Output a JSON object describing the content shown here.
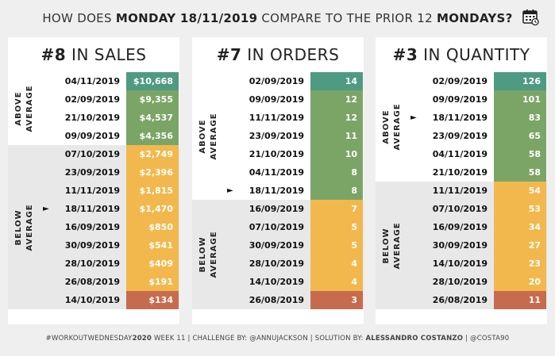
{
  "header": {
    "title_pre": "HOW DOES ",
    "title_day": "MONDAY 18/11/2019",
    "title_mid": " COMPARE TO THE PRIOR 12 ",
    "title_end": "MONDAYS?",
    "calendar_icon": "calendar-icon"
  },
  "footer": {
    "tag": "#WORKOUTWEDNESDAY",
    "tag2": "2020",
    "week": " WEEK 11 | CHALLENGE BY: ",
    "challenger": "@ANNUJACKSON",
    "sol": " | SOLUTION BY: ",
    "solver": "ALESSANDRO COSTANZO",
    "handle": " | @COSTA90"
  },
  "labels": {
    "above": [
      "ABOVE",
      "AVERAGE"
    ],
    "below": [
      "BELOW",
      "AVERAGE"
    ],
    "pointer": "►"
  },
  "colors": {
    "top": "#4f9a82",
    "above": "#7aa566",
    "below": "#f2b84d",
    "bottom": "#c76b4f",
    "panel": "#ffffff",
    "below_band": "#e8e8e8"
  },
  "chart_data": [
    {
      "type": "table",
      "rank": "#8",
      "metric": "IN SALES",
      "selected": "18/11/2019",
      "above_count": 4,
      "rows": [
        {
          "date": "04/11/2019",
          "value": 10668,
          "display": "$10,668"
        },
        {
          "date": "02/09/2019",
          "value": 9355,
          "display": "$9,355"
        },
        {
          "date": "21/10/2019",
          "value": 4537,
          "display": "$4,537"
        },
        {
          "date": "09/09/2019",
          "value": 4356,
          "display": "$4,356"
        },
        {
          "date": "07/10/2019",
          "value": 2749,
          "display": "$2,749"
        },
        {
          "date": "23/09/2019",
          "value": 2396,
          "display": "$2,396"
        },
        {
          "date": "11/11/2019",
          "value": 1815,
          "display": "$1,815"
        },
        {
          "date": "18/11/2019",
          "value": 1470,
          "display": "$1,470"
        },
        {
          "date": "16/09/2019",
          "value": 850,
          "display": "$850"
        },
        {
          "date": "30/09/2019",
          "value": 541,
          "display": "$541"
        },
        {
          "date": "28/10/2019",
          "value": 409,
          "display": "$409"
        },
        {
          "date": "26/08/2019",
          "value": 191,
          "display": "$191"
        },
        {
          "date": "14/10/2019",
          "value": 134,
          "display": "$134"
        }
      ]
    },
    {
      "type": "table",
      "rank": "#7",
      "metric": "IN ORDERS",
      "selected": "18/11/2019",
      "above_count": 7,
      "rows": [
        {
          "date": "02/09/2019",
          "value": 14,
          "display": "14"
        },
        {
          "date": "09/09/2019",
          "value": 12,
          "display": "12"
        },
        {
          "date": "11/11/2019",
          "value": 12,
          "display": "12"
        },
        {
          "date": "23/09/2019",
          "value": 11,
          "display": "11"
        },
        {
          "date": "21/10/2019",
          "value": 10,
          "display": "10"
        },
        {
          "date": "04/11/2019",
          "value": 8,
          "display": "8"
        },
        {
          "date": "18/11/2019",
          "value": 8,
          "display": "8"
        },
        {
          "date": "16/09/2019",
          "value": 7,
          "display": "7"
        },
        {
          "date": "07/10/2019",
          "value": 5,
          "display": "5"
        },
        {
          "date": "30/09/2019",
          "value": 5,
          "display": "5"
        },
        {
          "date": "28/10/2019",
          "value": 4,
          "display": "4"
        },
        {
          "date": "14/10/2019",
          "value": 4,
          "display": "4"
        },
        {
          "date": "26/08/2019",
          "value": 3,
          "display": "3"
        }
      ]
    },
    {
      "type": "table",
      "rank": "#3",
      "metric": "IN QUANTITY",
      "selected": "18/11/2019",
      "above_count": 6,
      "rows": [
        {
          "date": "02/09/2019",
          "value": 126,
          "display": "126"
        },
        {
          "date": "09/09/2019",
          "value": 101,
          "display": "101"
        },
        {
          "date": "18/11/2019",
          "value": 83,
          "display": "83"
        },
        {
          "date": "23/09/2019",
          "value": 65,
          "display": "65"
        },
        {
          "date": "04/11/2019",
          "value": 58,
          "display": "58"
        },
        {
          "date": "21/10/2019",
          "value": 58,
          "display": "58"
        },
        {
          "date": "11/11/2019",
          "value": 54,
          "display": "54"
        },
        {
          "date": "07/10/2019",
          "value": 53,
          "display": "53"
        },
        {
          "date": "16/09/2019",
          "value": 34,
          "display": "34"
        },
        {
          "date": "30/09/2019",
          "value": 27,
          "display": "27"
        },
        {
          "date": "14/10/2019",
          "value": 23,
          "display": "23"
        },
        {
          "date": "28/10/2019",
          "value": 20,
          "display": "20"
        },
        {
          "date": "26/08/2019",
          "value": 11,
          "display": "11"
        }
      ]
    }
  ]
}
